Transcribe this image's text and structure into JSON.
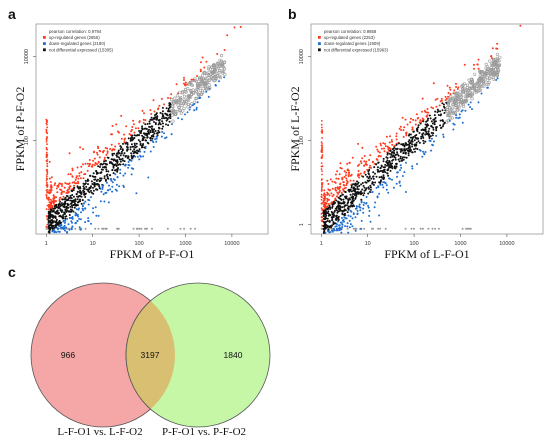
{
  "figure": {
    "panels": [
      {
        "letter": "a"
      },
      {
        "letter": "b"
      },
      {
        "letter": "c"
      }
    ]
  },
  "colors": {
    "up": "#ff3b1f",
    "down": "#1f6fd1",
    "not_diff": "#111111",
    "grey_points": "#9a9a9a",
    "venn_left": "#f4a7a6",
    "venn_right": "#c6f7a7",
    "venn_overlap": "#d9bf72"
  },
  "chart_data": [
    {
      "type": "scatter",
      "panel": "a",
      "xlabel": "FPKM of P-F-O1",
      "ylabel": "FPKM of P-F-O2",
      "xscale": "log",
      "yscale": "log",
      "x_ticks": [
        "1",
        "10",
        "100",
        "1000",
        "10000"
      ],
      "y_ticks": [
        "100",
        "10000"
      ],
      "xlim": [
        0.6,
        60000
      ],
      "ylim": [
        0.6,
        60000
      ],
      "legend_position": "top-left",
      "legend": [
        {
          "label": "pearson correlation: 0.9794",
          "color": "#ffffff"
        },
        {
          "label": "up-regulated genes (2855)",
          "color": "#ff3b1f"
        },
        {
          "label": "down-regulated genes (2180)",
          "color": "#1f6fd1"
        },
        {
          "label": "not differential expressed (15305)",
          "color": "#111111"
        }
      ],
      "series": [
        {
          "name": "up-regulated genes",
          "count": 2855
        },
        {
          "name": "down-regulated genes",
          "count": 2180
        },
        {
          "name": "not differential expressed",
          "count": 15305
        }
      ],
      "pearson": 0.9794
    },
    {
      "type": "scatter",
      "panel": "b",
      "xlabel": "FPKM of L-F-O1",
      "ylabel": "FPKM of L-F-O2",
      "xscale": "log",
      "yscale": "log",
      "x_ticks": [
        "1",
        "10",
        "100",
        "1000",
        "10000"
      ],
      "y_ticks": [
        "1",
        "100",
        "10000"
      ],
      "xlim": [
        0.6,
        60000
      ],
      "ylim": [
        0.6,
        60000
      ],
      "legend_position": "top-left",
      "legend": [
        {
          "label": "pearson correlation: 0.9858",
          "color": "#ffffff"
        },
        {
          "label": "up-regulated genes (2253)",
          "color": "#ff3b1f"
        },
        {
          "label": "down-regulated genes (1909)",
          "color": "#1f6fd1"
        },
        {
          "label": "not differential expressed (15963)",
          "color": "#111111"
        }
      ],
      "series": [
        {
          "name": "up-regulated genes",
          "count": 2253
        },
        {
          "name": "down-regulated genes",
          "count": 1909
        },
        {
          "name": "not differential expressed",
          "count": 15963
        }
      ],
      "pearson": 0.9858
    }
  ],
  "venn": {
    "left_only": "966",
    "overlap": "3197",
    "right_only": "1840",
    "left_label": "L-F-O1 vs. L-F-O2",
    "right_label": "P-F-O1 vs. P-F-O2"
  }
}
